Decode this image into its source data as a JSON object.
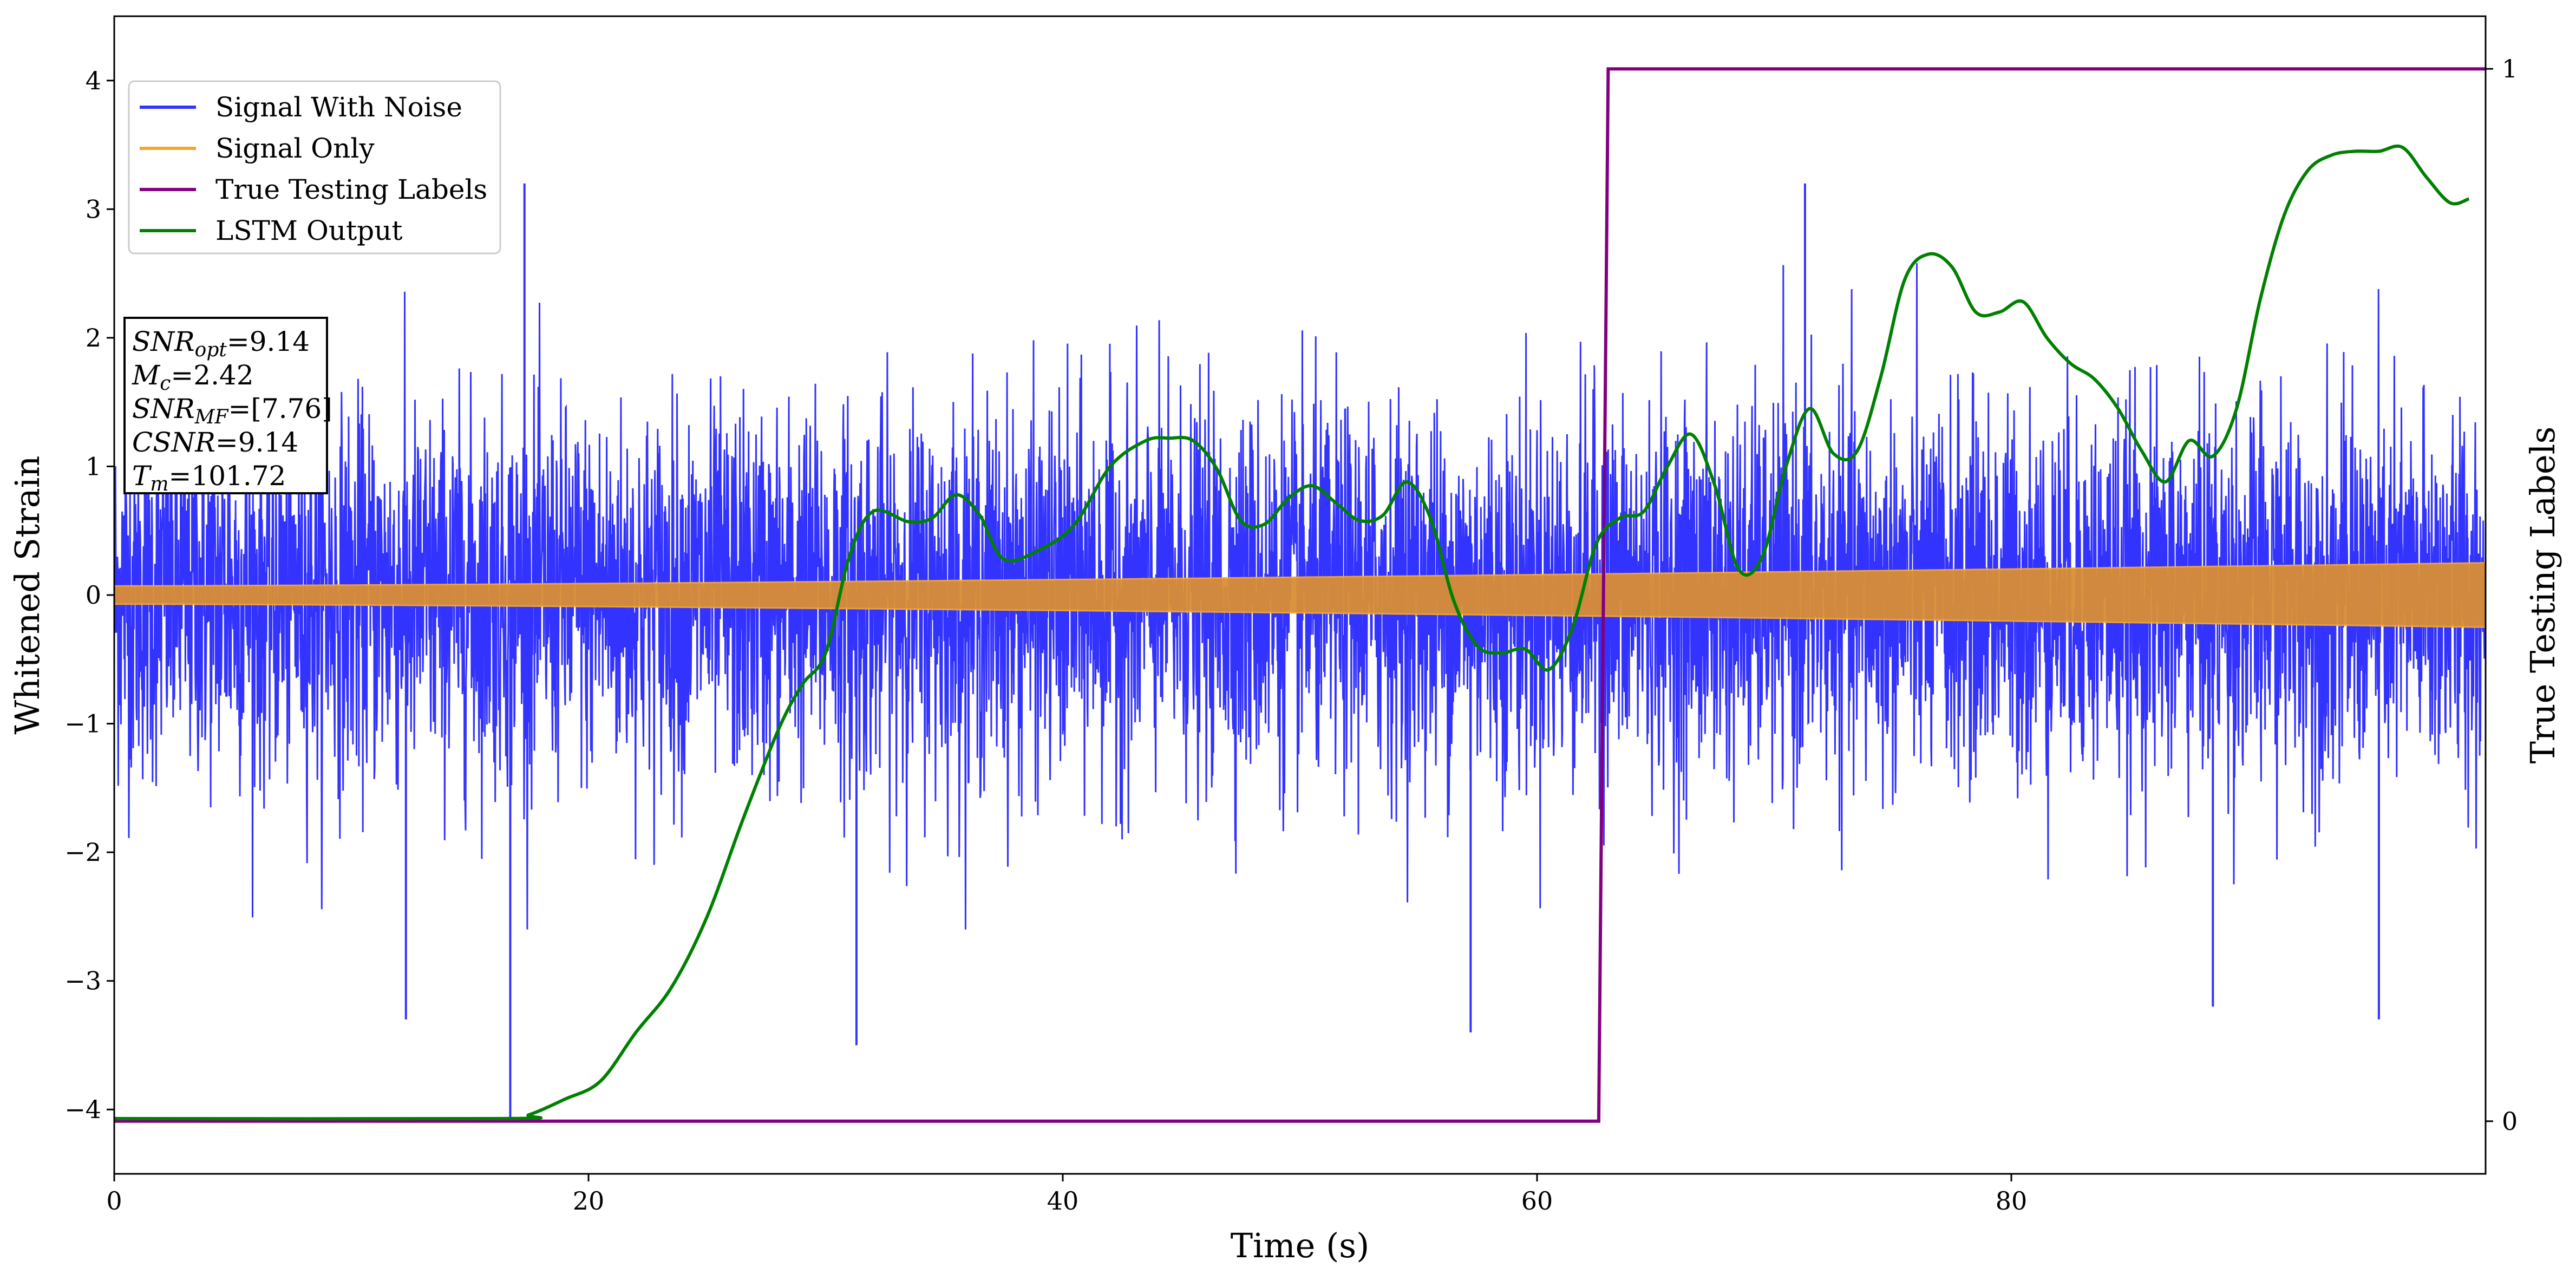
{
  "chart_data": {
    "type": "line",
    "xlabel": "Time (s)",
    "ylabel": "Whitened Strain",
    "y2label": "True Testing Labels",
    "xlim": [
      0,
      100
    ],
    "ylim": [
      -4.5,
      4.5
    ],
    "y2lim": [
      -0.05,
      1.05
    ],
    "grid": false,
    "legend_position": "top-left",
    "x_ticks": [
      0,
      20,
      40,
      60,
      80
    ],
    "x_tick_labels": [
      "0",
      "20",
      "40",
      "60",
      "80"
    ],
    "y_ticks": [
      -4,
      -3,
      -2,
      -1,
      0,
      1,
      2,
      3,
      4
    ],
    "y_tick_labels": [
      "−4",
      "−3",
      "−2",
      "−1",
      "0",
      "1",
      "2",
      "3",
      "4"
    ],
    "y2_ticks": [
      0,
      1
    ],
    "y2_tick_labels": [
      "0",
      "1"
    ],
    "series": [
      {
        "name": "Signal With Noise",
        "color": "#3333ff",
        "axis": "left",
        "style": "dense-noise",
        "approx_envelope": [
          -2.3,
          2.3
        ],
        "peak_spikes": [
          {
            "x": 16.7,
            "y": -4.1
          },
          {
            "x": 12.3,
            "y": -3.3
          },
          {
            "x": 31.3,
            "y": -3.5
          },
          {
            "x": 57.2,
            "y": -3.4
          },
          {
            "x": 17.3,
            "y": 3.2
          },
          {
            "x": 88.5,
            "y": -3.2
          },
          {
            "x": 95.5,
            "y": -3.3
          },
          {
            "x": 71.3,
            "y": 3.2
          }
        ]
      },
      {
        "name": "Signal Only",
        "color": "#f4a72b",
        "axis": "left",
        "style": "chirp-band",
        "amplitude_start": 0.07,
        "amplitude_end": 0.25
      },
      {
        "name": "True Testing Labels",
        "color": "#800080",
        "axis": "right",
        "x": [
          0,
          62.6,
          63.0,
          100
        ],
        "y": [
          0,
          0,
          1,
          1
        ]
      },
      {
        "name": "LSTM Output",
        "color": "#008000",
        "axis": "left",
        "x": [
          0,
          16.5,
          17.5,
          19,
          20.5,
          22,
          23.5,
          25,
          26.5,
          28,
          29,
          30,
          31,
          32,
          33.5,
          34.5,
          35.5,
          36.5,
          37.5,
          39,
          40.5,
          42,
          43.5,
          44.5,
          45.5,
          46.5,
          47.5,
          48.5,
          49.5,
          50.5,
          51.5,
          52.5,
          53.5,
          54.5,
          55.5,
          56.5,
          57.5,
          58.5,
          59.5,
          60.5,
          61.5,
          62.5,
          63.5,
          64.5,
          65.5,
          66.5,
          67.5,
          68.5,
          69.5,
          70.5,
          71.5,
          72.5,
          73.5,
          74.5,
          75.5,
          76.5,
          77.5,
          78.5,
          79.5,
          80.5,
          81.5,
          82.5,
          83.5,
          84.5,
          85.5,
          86.5,
          87.5,
          88.5,
          89.5,
          90.5,
          91.5,
          92.5,
          93.5,
          94.5,
          95.5,
          96.5,
          97.5,
          98.5,
          99.3
        ],
        "y": [
          -4.07,
          -4.07,
          -4.04,
          -3.92,
          -3.78,
          -3.4,
          -3.05,
          -2.5,
          -1.75,
          -1.05,
          -0.7,
          -0.45,
          0.3,
          0.65,
          0.57,
          0.6,
          0.78,
          0.62,
          0.28,
          0.35,
          0.55,
          1.0,
          1.2,
          1.22,
          1.2,
          0.98,
          0.58,
          0.55,
          0.75,
          0.85,
          0.72,
          0.58,
          0.62,
          0.88,
          0.6,
          -0.05,
          -0.4,
          -0.45,
          -0.42,
          -0.58,
          -0.25,
          0.4,
          0.6,
          0.65,
          1.0,
          1.25,
          0.85,
          0.2,
          0.3,
          1.0,
          1.45,
          1.1,
          1.12,
          1.7,
          2.45,
          2.65,
          2.55,
          2.2,
          2.2,
          2.28,
          2.0,
          1.8,
          1.68,
          1.45,
          1.12,
          0.88,
          1.2,
          1.08,
          1.45,
          2.3,
          2.95,
          3.3,
          3.42,
          3.45,
          3.45,
          3.48,
          3.25,
          3.05,
          3.08
        ]
      }
    ],
    "annotation_box": {
      "lines": [
        {
          "label": "SNR",
          "sub": "opt",
          "value": "=9.14"
        },
        {
          "label": "M",
          "sub": "c",
          "value": "=2.42"
        },
        {
          "label": "SNR",
          "sub": "MF",
          "value": "=[7.76]"
        },
        {
          "label": "CSNR",
          "sub": "",
          "value": "=9.14"
        },
        {
          "label": "T",
          "sub": "m",
          "value": "=101.72"
        }
      ]
    }
  }
}
